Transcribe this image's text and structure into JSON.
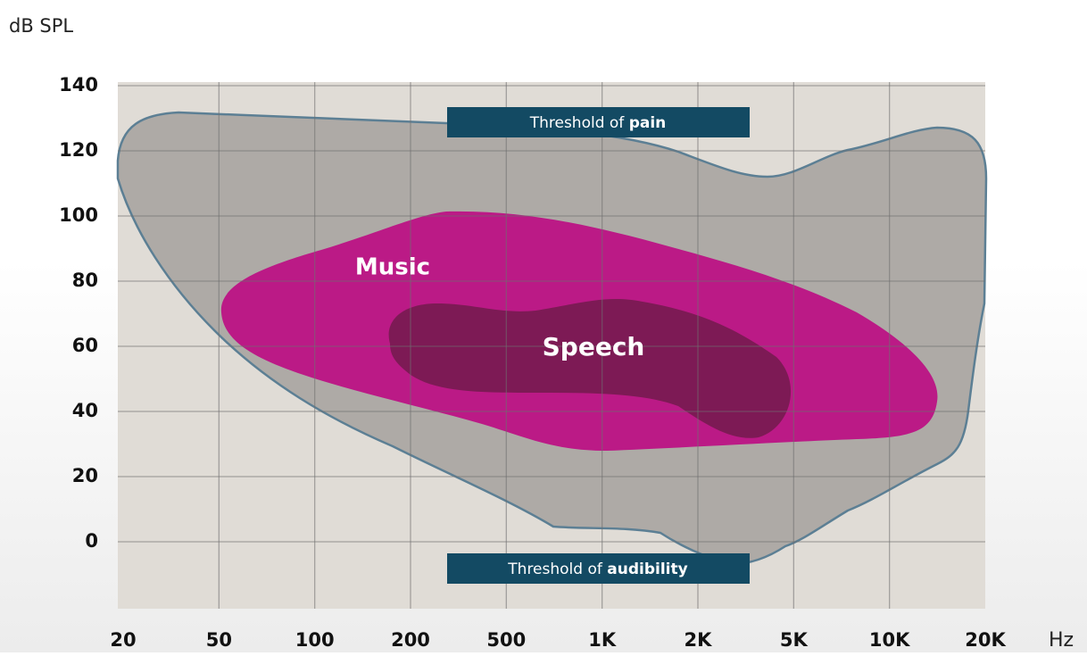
{
  "chart_data": {
    "type": "hearing-range",
    "y_label": "dB SPL",
    "x_unit": "Hz",
    "categories": [
      "20",
      "50",
      "100",
      "200",
      "500",
      "1K",
      "2K",
      "5K",
      "10K",
      "20K"
    ],
    "ylim": [
      -20,
      140
    ],
    "yticks": [
      0,
      20,
      40,
      60,
      80,
      100,
      120,
      140
    ],
    "grid": true,
    "regions": [
      {
        "name": "Music"
      },
      {
        "name": "Speech"
      }
    ],
    "thresholds": [
      {
        "prefix": "Threshold of",
        "emphasis": "pain"
      },
      {
        "prefix": "Threshold of",
        "emphasis": "audibility"
      }
    ]
  }
}
